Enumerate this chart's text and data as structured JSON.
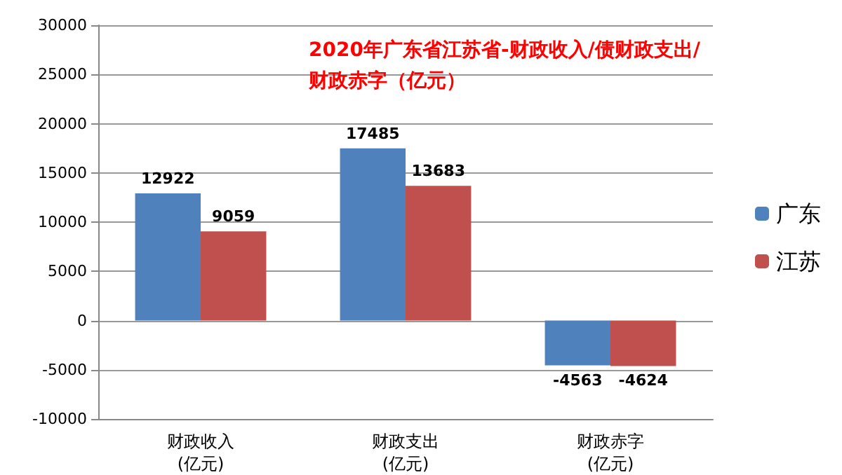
{
  "chart_data": {
    "type": "bar",
    "title": "2020年广东省江苏省-财政收入/债财政支出/财政赤字（亿元）",
    "categories": [
      "财政收入\n(亿元)",
      "财政支出\n(亿元)",
      "财政赤字\n(亿元)"
    ],
    "series": [
      {
        "name": "广东",
        "color": "#4f81bd",
        "values": [
          12922,
          17485,
          -4563
        ]
      },
      {
        "name": "江苏",
        "color": "#c0504d",
        "values": [
          9059,
          13683,
          -4624
        ]
      }
    ],
    "ylim": [
      -10000,
      30000
    ],
    "yticks": [
      -10000,
      -5000,
      0,
      5000,
      10000,
      15000,
      20000,
      25000,
      30000
    ],
    "grid": "y",
    "legend": "right",
    "data_labels": true
  }
}
